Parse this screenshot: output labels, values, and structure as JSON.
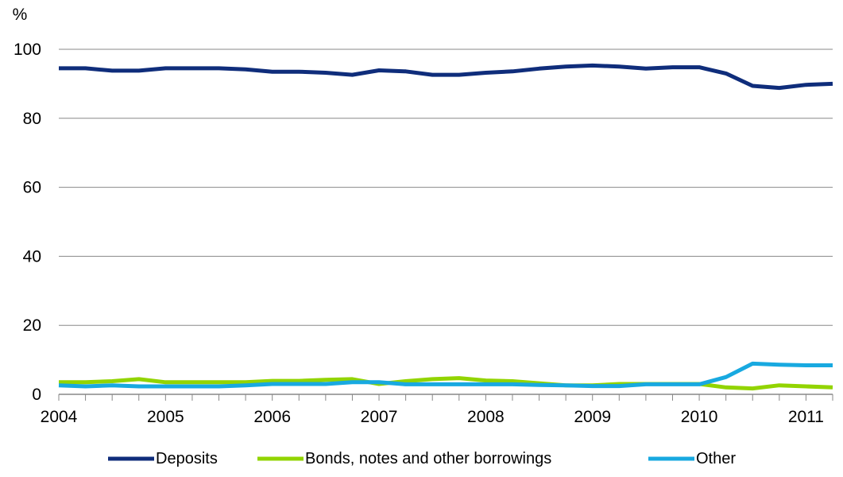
{
  "chart_data": {
    "type": "line",
    "ylabel": "%",
    "xlabel": "",
    "ylim": [
      0,
      100
    ],
    "y_ticks": [
      "0",
      "20",
      "40",
      "60",
      "80",
      "100"
    ],
    "x_range": [
      2004,
      2011.25
    ],
    "x_ticks": [
      "2004",
      "2005",
      "2006",
      "2007",
      "2008",
      "2009",
      "2010",
      "2011"
    ],
    "grid": "horizontal",
    "legend_position": "bottom",
    "x": [
      2004.0,
      2004.25,
      2004.5,
      2004.75,
      2005.0,
      2005.25,
      2005.5,
      2005.75,
      2006.0,
      2006.25,
      2006.5,
      2006.75,
      2007.0,
      2007.25,
      2007.5,
      2007.75,
      2008.0,
      2008.25,
      2008.5,
      2008.75,
      2009.0,
      2009.25,
      2009.5,
      2009.75,
      2010.0,
      2010.25,
      2010.5,
      2010.75,
      2011.0,
      2011.25
    ],
    "series": [
      {
        "name": "Deposits",
        "color": "#0f2d7b",
        "values": [
          94.5,
          94.5,
          93.8,
          93.8,
          94.5,
          94.5,
          94.5,
          94.2,
          93.5,
          93.5,
          93.2,
          92.6,
          93.9,
          93.6,
          92.6,
          92.6,
          93.2,
          93.6,
          94.4,
          95.0,
          95.3,
          95.0,
          94.4,
          94.8,
          94.8,
          93.0,
          89.4,
          88.8,
          89.7,
          90.0
        ]
      },
      {
        "name": "Bonds, notes and other borrowings",
        "color": "#92d400",
        "values": [
          3.5,
          3.5,
          3.8,
          4.4,
          3.5,
          3.5,
          3.5,
          3.5,
          3.9,
          3.9,
          4.2,
          4.4,
          3.0,
          3.8,
          4.4,
          4.7,
          4.0,
          3.8,
          3.2,
          2.6,
          2.6,
          3.0,
          3.0,
          3.0,
          3.0,
          2.0,
          1.7,
          2.6,
          2.3,
          2.0
        ]
      },
      {
        "name": "Other",
        "color": "#18a9e0",
        "values": [
          2.6,
          2.3,
          2.6,
          2.3,
          2.3,
          2.3,
          2.3,
          2.6,
          3.0,
          3.0,
          3.0,
          3.5,
          3.5,
          2.9,
          2.9,
          2.9,
          2.9,
          2.9,
          2.7,
          2.6,
          2.4,
          2.4,
          2.9,
          2.9,
          2.9,
          5.0,
          8.9,
          8.6,
          8.4,
          8.4
        ]
      }
    ]
  }
}
